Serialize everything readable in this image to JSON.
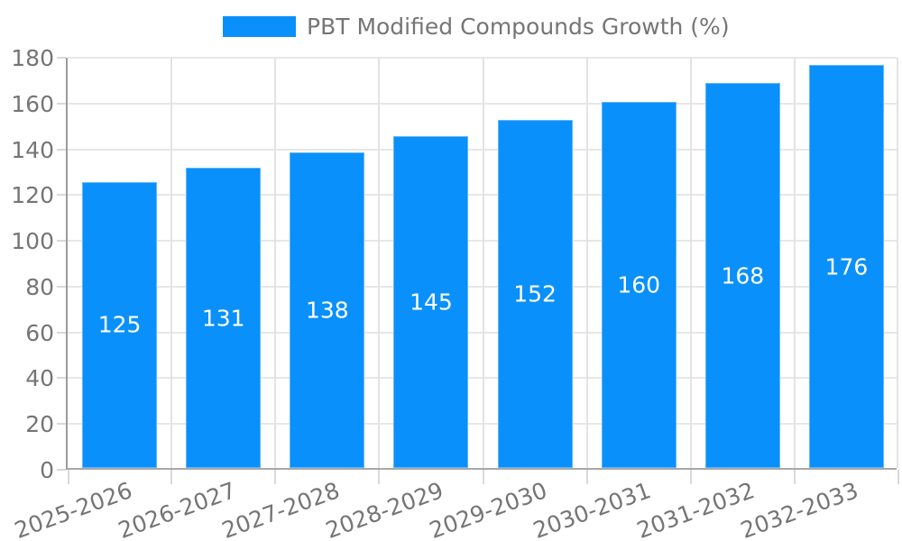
{
  "chart_data": {
    "type": "bar",
    "title": "",
    "legend": {
      "label": "PBT Modified Compounds Growth (%)",
      "swatch_color": "#0a90fa",
      "position": "top-center"
    },
    "categories": [
      "2025-2026",
      "2026-2027",
      "2027-2028",
      "2028-2029",
      "2029-2030",
      "2030-2031",
      "2031-2032",
      "2032-2033"
    ],
    "values": [
      125,
      131,
      138,
      145,
      152,
      160,
      168,
      176
    ],
    "xlabel": "",
    "ylabel": "",
    "ylim": [
      0,
      180
    ],
    "yticks": [
      0,
      20,
      40,
      60,
      80,
      100,
      120,
      140,
      160,
      180
    ],
    "grid": true,
    "x_tick_rotation_deg": -20,
    "colors": {
      "bar": "#0a90fa",
      "value_label": "#ffffff",
      "tick_label": "#757575",
      "gridline": "#e7e7e7",
      "axis": "#9b9b9b"
    }
  }
}
